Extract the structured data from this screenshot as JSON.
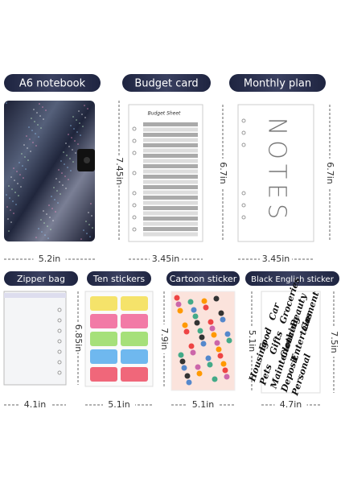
{
  "top_row": [
    {
      "label": "A6 notebook",
      "height": "7.45in",
      "width": "5.2in"
    },
    {
      "label": "Budget card",
      "height": "6.7in",
      "width": "3.45in",
      "sheet_title": "Budget Sheet"
    },
    {
      "label": "Monthly plan",
      "height": "6.7in",
      "width": "3.45in",
      "cover_text": "NOTES"
    }
  ],
  "bottom_row": [
    {
      "label": "Zipper bag",
      "height": "6.85in",
      "width": "4.1in"
    },
    {
      "label": "Ten stickers",
      "height": "7.9in",
      "width": "5.1in"
    },
    {
      "label": "Cartoon sticker",
      "height": "5.1in",
      "width": "5.1in"
    },
    {
      "label": "Black English sticker",
      "height": "7.5in",
      "width": "4.7in",
      "words": [
        "Housing",
        "Food",
        "Car",
        "Pets",
        "Gifts",
        "Groceries",
        "Maintenance",
        "Clothing",
        "Beauty",
        "Deposit",
        "Entertainment",
        "Gas",
        "Personal"
      ]
    }
  ]
}
